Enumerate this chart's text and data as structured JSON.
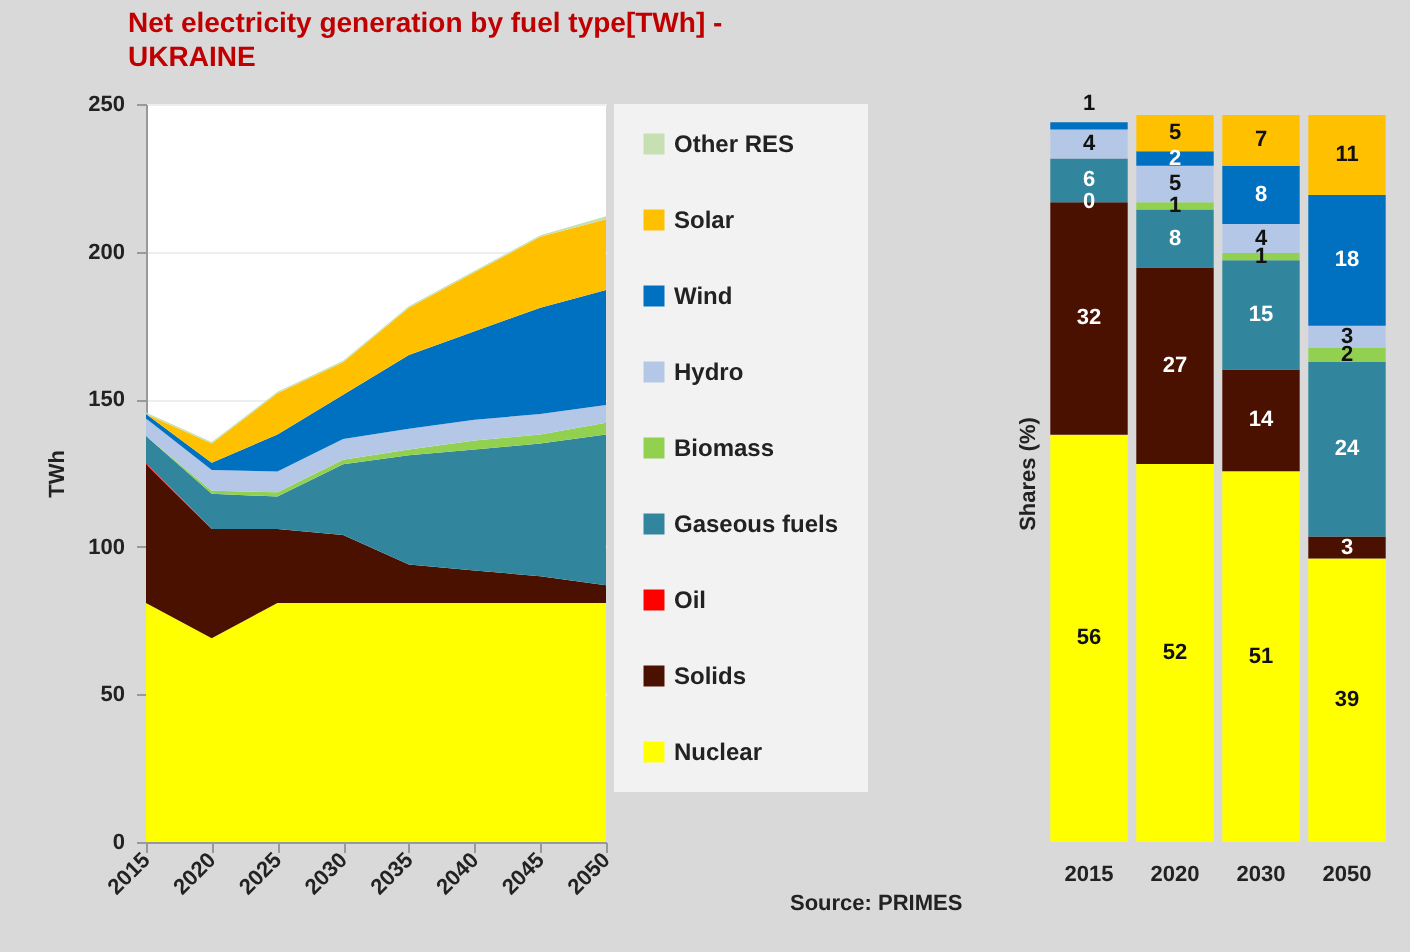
{
  "chart_data": [
    {
      "type": "area",
      "title": "Net electricity generation by fuel type[TWh] - UKRAINE",
      "ylabel": "TWh",
      "stacked": true,
      "legend": "right",
      "grid": "y",
      "x": [
        2015,
        2020,
        2025,
        2030,
        2035,
        2040,
        2045,
        2050
      ],
      "xlim": [
        2015,
        2050
      ],
      "xticks": [
        2015,
        2020,
        2025,
        2030,
        2035,
        2040,
        2045,
        2050
      ],
      "ylim": [
        0,
        250
      ],
      "yticks": [
        0,
        50,
        100,
        150,
        200,
        250
      ],
      "annotations": [
        "Source: PRIMES"
      ],
      "series": [
        {
          "name": "Nuclear",
          "color": "#ffff00",
          "values": [
            81,
            69,
            81,
            81,
            81,
            81,
            81,
            81
          ]
        },
        {
          "name": "Solids",
          "color": "#4a1000",
          "values": [
            47,
            37,
            25,
            23,
            13,
            11,
            9,
            6
          ]
        },
        {
          "name": "Oil",
          "color": "#ff0000",
          "values": [
            0.5,
            0,
            0,
            0,
            0,
            0,
            0,
            0
          ]
        },
        {
          "name": "Gaseous fuels",
          "color": "#31859c",
          "values": [
            9,
            12,
            11,
            24,
            37,
            41,
            45,
            51
          ]
        },
        {
          "name": "Biomass",
          "color": "#92d050",
          "values": [
            0,
            1,
            1.5,
            1.5,
            2,
            3,
            3,
            4
          ]
        },
        {
          "name": "Hydro",
          "color": "#b4c7e7",
          "values": [
            6,
            7,
            7,
            7,
            7,
            7,
            7,
            6
          ]
        },
        {
          "name": "Wind",
          "color": "#0070c0",
          "values": [
            1.5,
            2.5,
            12.5,
            15,
            25,
            30,
            36,
            39
          ]
        },
        {
          "name": "Solar",
          "color": "#ffc000",
          "values": [
            0,
            6.5,
            14,
            11,
            16,
            20,
            24,
            24
          ]
        },
        {
          "name": "Other RES",
          "color": "#c6e0b4",
          "values": [
            0.5,
            0.5,
            0.5,
            0.5,
            0.5,
            0.5,
            0.5,
            1
          ]
        }
      ]
    },
    {
      "type": "bar",
      "ylabel": "Shares (%)",
      "stacked": true,
      "data_labels": true,
      "tick_labels": "x",
      "categories": [
        "2015",
        "2020",
        "2030",
        "2050"
      ],
      "series": [
        {
          "color": "#ffff00",
          "values": [
            56,
            52,
            51,
            39
          ]
        },
        {
          "color": "#4a1000",
          "values": [
            32,
            27,
            14,
            3
          ]
        },
        {
          "color": "#ff0000",
          "values": [
            0,
            null,
            null,
            null
          ]
        },
        {
          "color": "#31859c",
          "values": [
            6,
            8,
            15,
            24
          ]
        },
        {
          "color": "#92d050",
          "values": [
            null,
            1,
            1,
            2
          ]
        },
        {
          "color": "#b4c7e7",
          "values": [
            4,
            5,
            4,
            3
          ]
        },
        {
          "color": "#0070c0",
          "values": [
            1,
            2,
            8,
            18
          ]
        },
        {
          "color": "#ffc000",
          "values": [
            null,
            5,
            7,
            11
          ]
        }
      ]
    }
  ]
}
